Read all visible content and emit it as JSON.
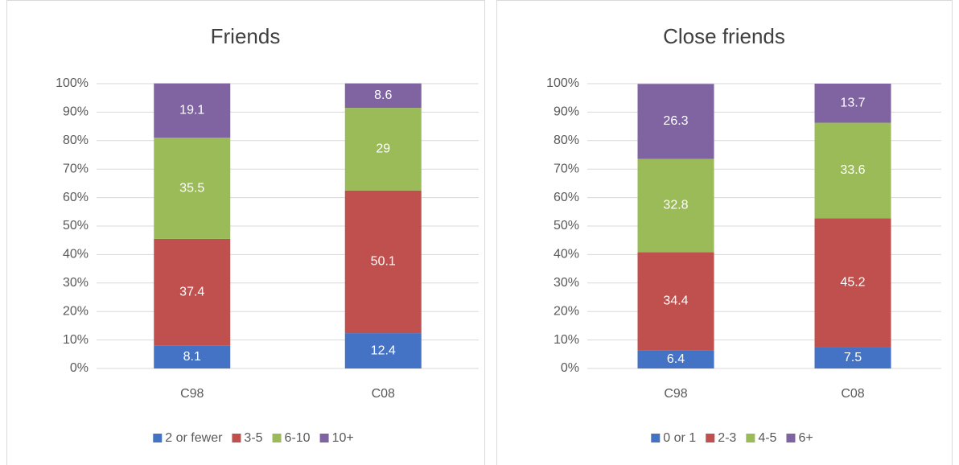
{
  "chart_data": [
    {
      "type": "bar",
      "stacked": true,
      "title": "Friends",
      "categories": [
        "C98",
        "C08"
      ],
      "series": [
        {
          "name": "2 or fewer",
          "color": "#4472c4",
          "values": [
            8.1,
            12.4
          ]
        },
        {
          "name": "3-5",
          "color": "#c0504d",
          "values": [
            37.4,
            50.1
          ]
        },
        {
          "name": "6-10",
          "color": "#9bbb59",
          "values": [
            35.5,
            29
          ]
        },
        {
          "name": "10+",
          "color": "#8064a2",
          "values": [
            19.1,
            8.6
          ]
        }
      ],
      "ylim": [
        0,
        100
      ],
      "yticks": [
        {
          "value": 0,
          "label": "0%"
        },
        {
          "value": 10,
          "label": "10%"
        },
        {
          "value": 20,
          "label": "20%"
        },
        {
          "value": 30,
          "label": "30%"
        },
        {
          "value": 40,
          "label": "40%"
        },
        {
          "value": 50,
          "label": "50%"
        },
        {
          "value": 60,
          "label": "60%"
        },
        {
          "value": 70,
          "label": "70%"
        },
        {
          "value": 80,
          "label": "80%"
        },
        {
          "value": 90,
          "label": "90%"
        },
        {
          "value": 100,
          "label": "100%"
        }
      ],
      "grid": true,
      "legend": "bottom"
    },
    {
      "type": "bar",
      "stacked": true,
      "title": "Close friends",
      "categories": [
        "C98",
        "C08"
      ],
      "series": [
        {
          "name": "0 or 1",
          "color": "#4472c4",
          "values": [
            6.4,
            7.5
          ]
        },
        {
          "name": "2-3",
          "color": "#c0504d",
          "values": [
            34.4,
            45.2
          ]
        },
        {
          "name": "4-5",
          "color": "#9bbb59",
          "values": [
            32.8,
            33.6
          ]
        },
        {
          "name": "6+",
          "color": "#8064a2",
          "values": [
            26.3,
            13.7
          ]
        }
      ],
      "ylim": [
        0,
        100
      ],
      "yticks": [
        {
          "value": 0,
          "label": "0%"
        },
        {
          "value": 10,
          "label": "10%"
        },
        {
          "value": 20,
          "label": "20%"
        },
        {
          "value": 30,
          "label": "30%"
        },
        {
          "value": 40,
          "label": "40%"
        },
        {
          "value": 50,
          "label": "50%"
        },
        {
          "value": 60,
          "label": "60%"
        },
        {
          "value": 70,
          "label": "70%"
        },
        {
          "value": 80,
          "label": "80%"
        },
        {
          "value": 90,
          "label": "90%"
        },
        {
          "value": 100,
          "label": "100%"
        }
      ],
      "grid": true,
      "legend": "bottom"
    }
  ]
}
